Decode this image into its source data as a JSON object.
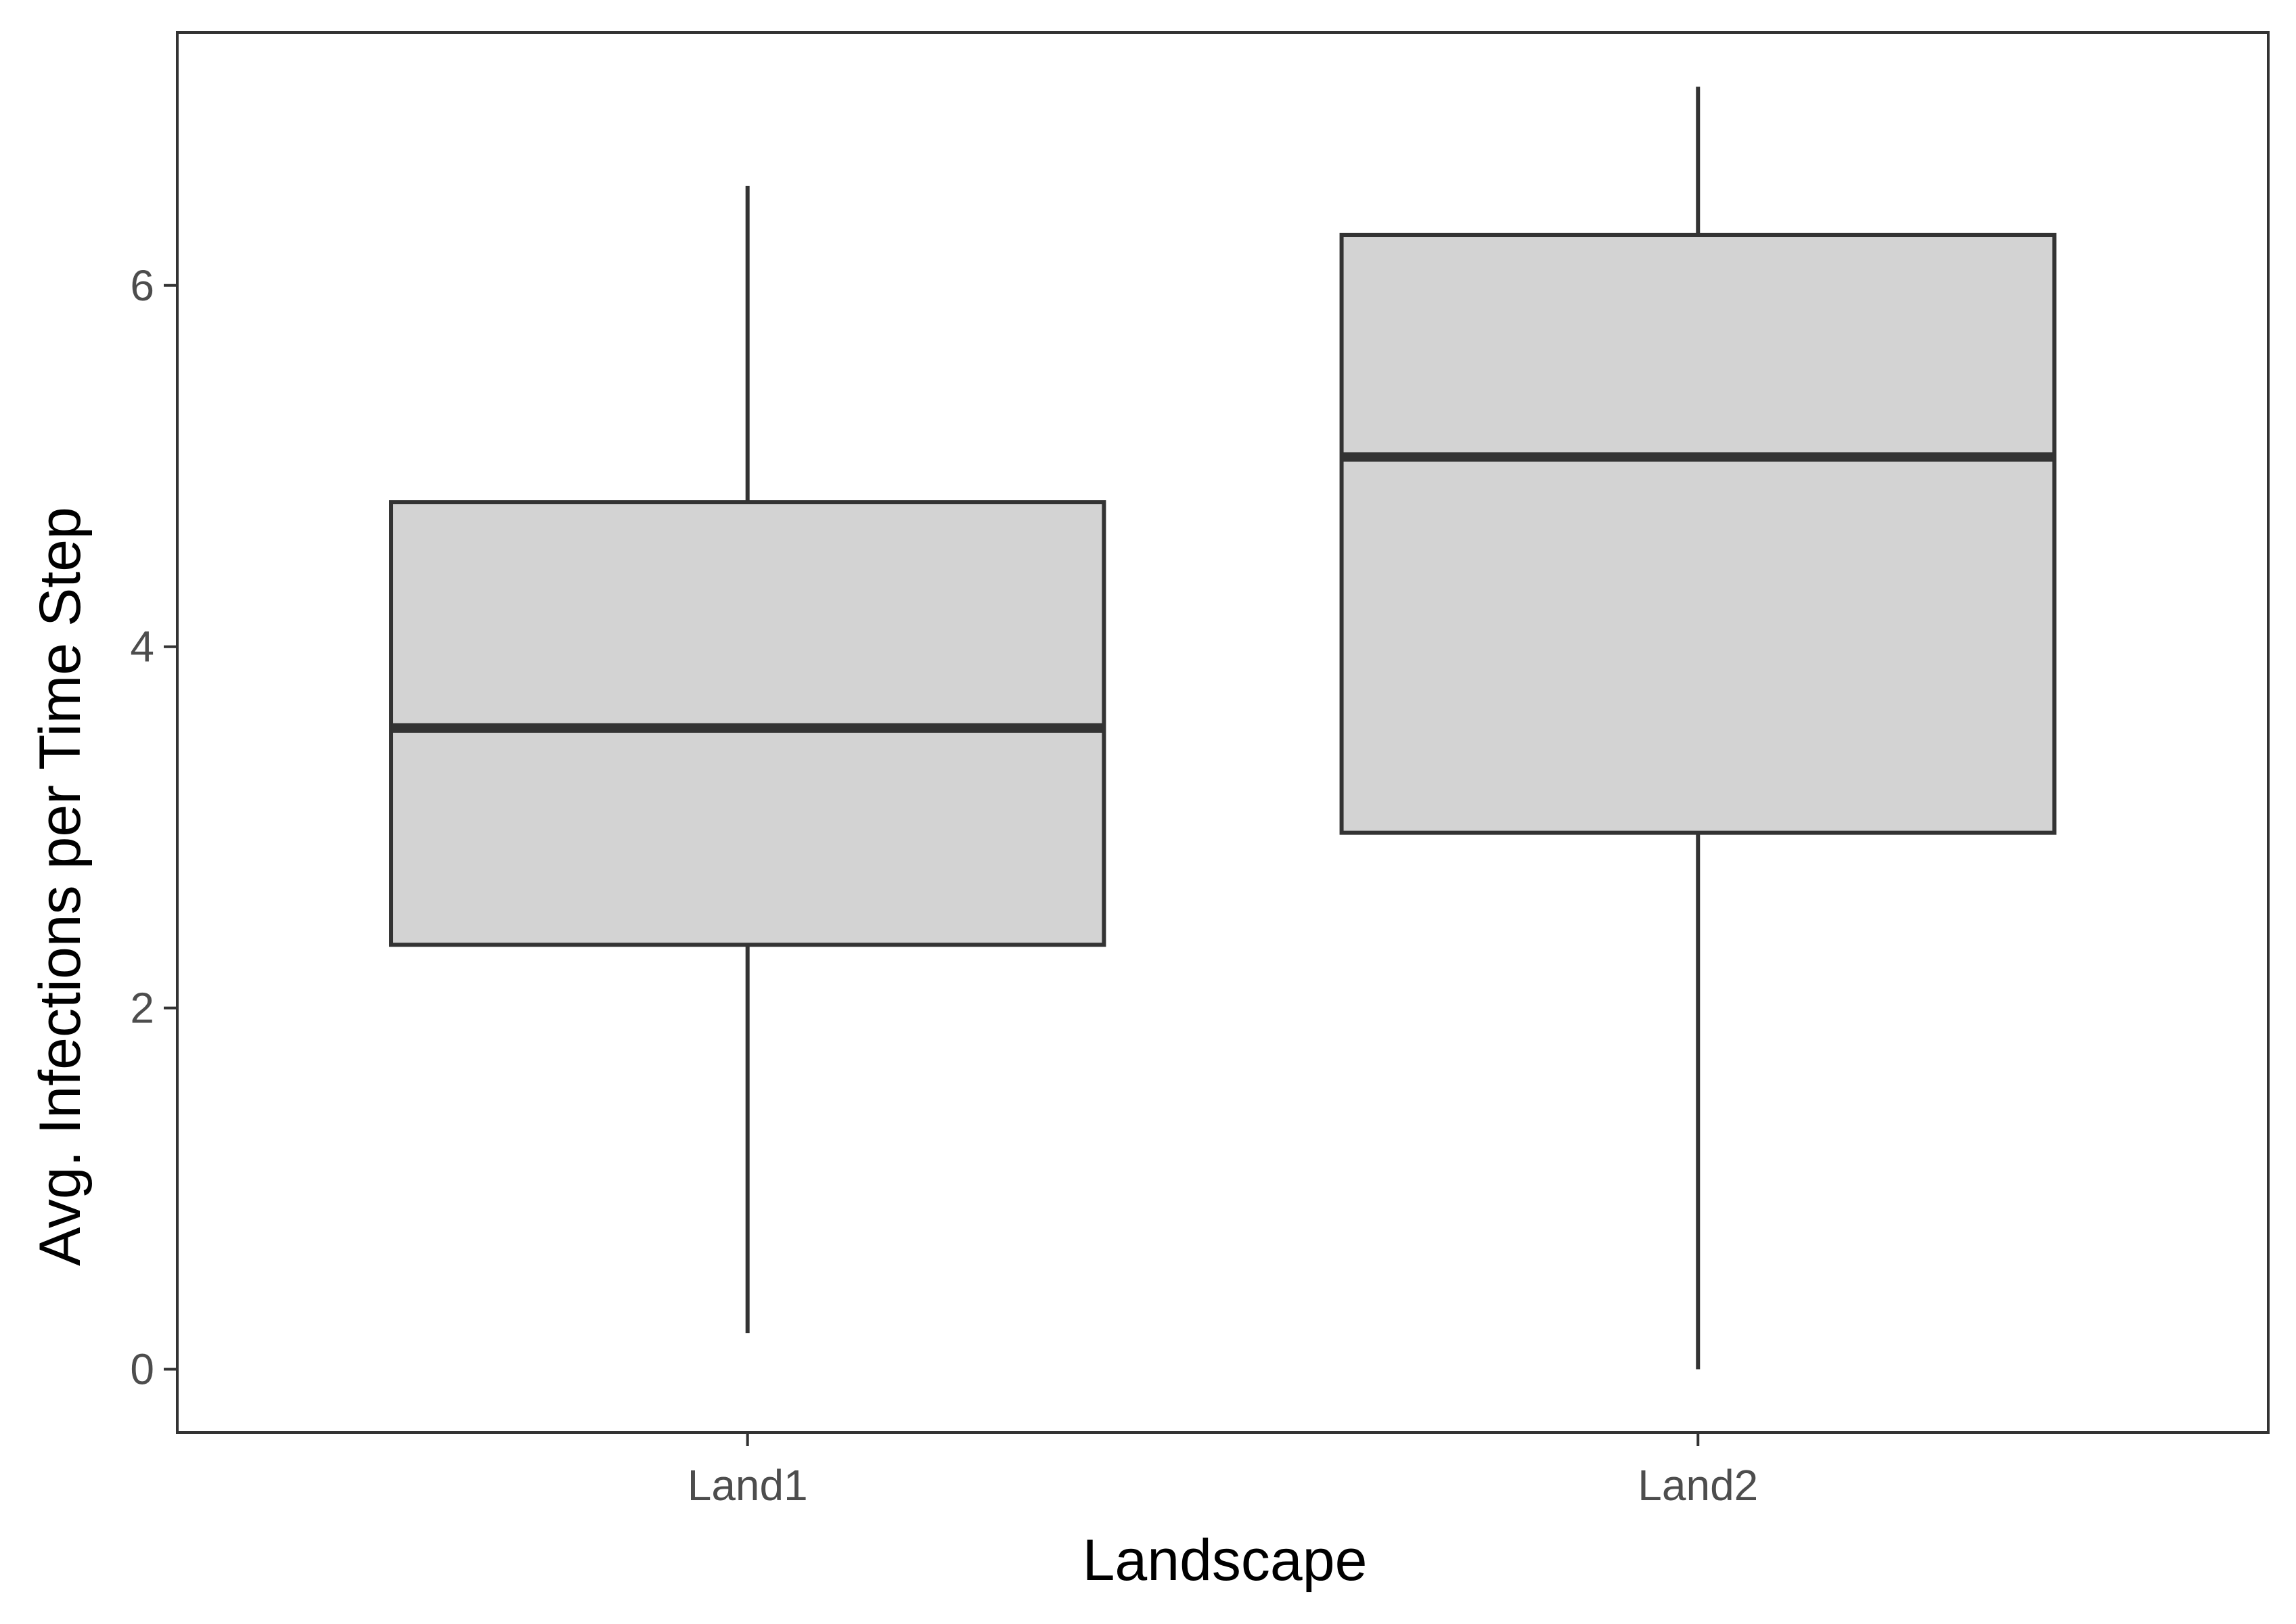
{
  "chart_data": {
    "type": "boxplot",
    "title": "",
    "xlabel": "Landscape",
    "ylabel": "Avg. Infections per Time Step",
    "categories": [
      "Land1",
      "Land2"
    ],
    "boxes": [
      {
        "category": "Land1",
        "whisker_low": 0.2,
        "q1": 2.35,
        "median": 3.55,
        "q3": 4.8,
        "whisker_high": 6.55
      },
      {
        "category": "Land2",
        "whisker_low": 0.0,
        "q1": 2.97,
        "median": 5.05,
        "q3": 6.28,
        "whisker_high": 7.1
      }
    ],
    "yticks": [
      0,
      2,
      4,
      6
    ],
    "ylim": [
      -0.35,
      7.4
    ],
    "grid": false,
    "legend": "none",
    "colors": {
      "box_fill": "#d3d3d3",
      "box_stroke": "#333333",
      "panel_border": "#333333",
      "tick_text": "#4d4d4d"
    }
  }
}
